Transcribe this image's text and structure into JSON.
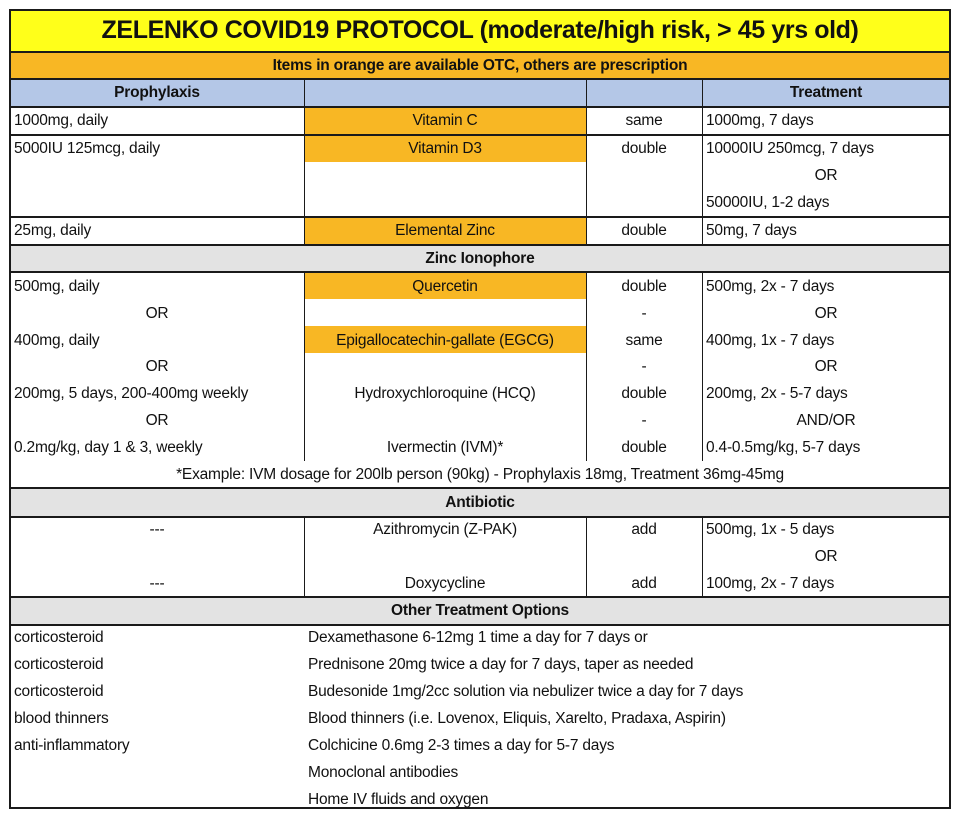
{
  "title": "ZELENKO COVID19 PROTOCOL  (moderate/high risk, > 45 yrs old)",
  "banner": "Items in orange are available OTC, others are prescription",
  "header": {
    "prophylaxis": "Prophylaxis",
    "medication": "",
    "change": "",
    "treatment": "Treatment"
  },
  "colors": {
    "title_bg": "#ffff1a",
    "otc_orange": "#f8b724",
    "header_blue": "#b4c7e7",
    "section_gray": "#e3e3e3"
  },
  "supplements": [
    {
      "prophylaxis": "1000mg, daily",
      "name": "Vitamin C",
      "otc": true,
      "change": "same",
      "treatment": [
        "1000mg, 7 days"
      ]
    },
    {
      "prophylaxis": "5000IU 125mcg, daily",
      "name": "Vitamin D3",
      "otc": true,
      "change": "double",
      "treatment": [
        "10000IU 250mcg, 7 days",
        "OR",
        "50000IU, 1-2 days"
      ]
    },
    {
      "prophylaxis": "25mg, daily",
      "name": "Elemental Zinc",
      "otc": true,
      "change": "double",
      "treatment": [
        "50mg, 7 days"
      ]
    }
  ],
  "ionophore": {
    "title": "Zinc Ionophore",
    "rows": [
      {
        "prophylaxis": "500mg, daily",
        "name": "Quercetin",
        "otc": true,
        "change": "double",
        "treatment": "500mg, 2x - 7 days"
      },
      {
        "prophylaxis": "OR",
        "name": "",
        "otc": false,
        "change": "-",
        "treatment": "OR"
      },
      {
        "prophylaxis": "400mg, daily",
        "name": "Epigallocatechin-gallate (EGCG)",
        "otc": true,
        "change": "same",
        "treatment": "400mg, 1x - 7 days"
      },
      {
        "prophylaxis": "OR",
        "name": "",
        "otc": false,
        "change": "-",
        "treatment": "OR"
      },
      {
        "prophylaxis": "200mg, 5 days, 200-400mg weekly",
        "name": "Hydroxychloroquine (HCQ)",
        "otc": false,
        "change": "double",
        "treatment": "200mg, 2x - 5-7 days"
      },
      {
        "prophylaxis": "OR",
        "name": "",
        "otc": false,
        "change": "-",
        "treatment": "AND/OR"
      },
      {
        "prophylaxis": "0.2mg/kg, day 1 & 3, weekly",
        "name": "Ivermectin (IVM)*",
        "otc": false,
        "change": "double",
        "treatment": "0.4-0.5mg/kg, 5-7 days"
      }
    ],
    "footnote": "*Example: IVM dosage for 200lb person (90kg) - Prophylaxis 18mg, Treatment 36mg-45mg"
  },
  "antibiotic": {
    "title": "Antibiotic",
    "rows": [
      {
        "prophylaxis": "---",
        "name": "Azithromycin (Z-PAK)",
        "change": "add",
        "treatment": "500mg, 1x - 5 days"
      },
      {
        "prophylaxis": "",
        "name": "",
        "change": "",
        "treatment": "OR"
      },
      {
        "prophylaxis": "---",
        "name": "Doxycycline",
        "change": "add",
        "treatment": "100mg, 2x - 7 days"
      }
    ]
  },
  "other": {
    "title": "Other Treatment Options",
    "rows": [
      {
        "category": "corticosteroid",
        "option": "Dexamethasone 6-12mg 1 time a day for 7 days or"
      },
      {
        "category": "corticosteroid",
        "option": "Prednisone 20mg twice a day for 7 days, taper as needed"
      },
      {
        "category": "corticosteroid",
        "option": "Budesonide 1mg/2cc solution via nebulizer twice a day for 7 days"
      },
      {
        "category": "blood thinners",
        "option": "Blood thinners (i.e. Lovenox, Eliquis, Xarelto, Pradaxa, Aspirin)"
      },
      {
        "category": "anti-inflammatory",
        "option": "Colchicine 0.6mg 2-3 times a day for 5-7 days"
      },
      {
        "category": "",
        "option": "Monoclonal antibodies"
      },
      {
        "category": "",
        "option": "Home IV fluids and oxygen"
      }
    ]
  }
}
